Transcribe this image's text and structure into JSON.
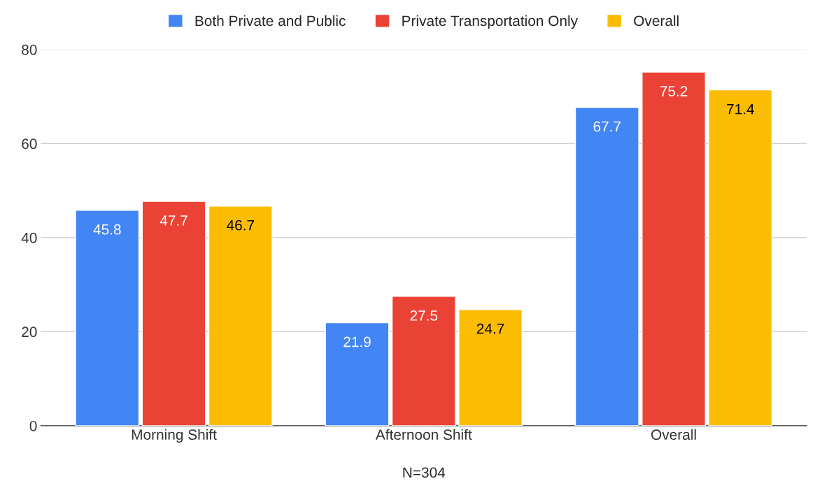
{
  "chart_data": {
    "type": "bar",
    "xlabel": "N=304",
    "categories": [
      "Morning Shift",
      "Afternoon Shift",
      "Overall"
    ],
    "series": [
      {
        "name": "Both Private and Public",
        "color": "#4285f4",
        "values": [
          45.8,
          21.9,
          67.7
        ]
      },
      {
        "name": "Private Transportation Only",
        "color": "#ea4335",
        "values": [
          47.7,
          27.5,
          75.2
        ]
      },
      {
        "name": "Overall",
        "color": "#fbbc04",
        "values": [
          46.7,
          24.7,
          71.4
        ]
      }
    ],
    "ylim": [
      0,
      80
    ],
    "yticks": [
      0,
      20,
      40,
      60,
      80
    ],
    "grid": "y",
    "legend": "top",
    "data_labels": true
  }
}
